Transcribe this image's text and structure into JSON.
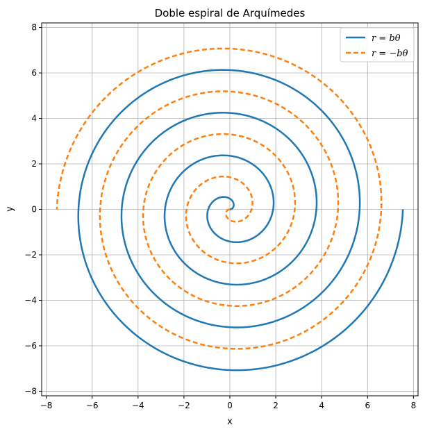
{
  "chart_data": {
    "type": "line",
    "title": "Doble espiral de Arquímedes",
    "xlabel": "x",
    "ylabel": "y",
    "xlim": [
      -8.2,
      8.2
    ],
    "ylim": [
      -8.2,
      8.2
    ],
    "xticks": [
      -8,
      -6,
      -4,
      -2,
      0,
      2,
      4,
      6,
      8
    ],
    "yticks": [
      -8,
      -6,
      -4,
      -2,
      0,
      2,
      4,
      6,
      8
    ],
    "xtick_labels": [
      "−8",
      "−6",
      "−4",
      "−2",
      "0",
      "2",
      "4",
      "6",
      "8"
    ],
    "ytick_labels": [
      "−8",
      "−6",
      "−4",
      "−2",
      "0",
      "2",
      "4",
      "6",
      "8"
    ],
    "grid": true,
    "legend_position": "top-right",
    "equation": {
      "parameter": "theta",
      "theta_range": [
        0,
        25.1327
      ],
      "b": 0.3
    },
    "series": [
      {
        "name": "r = bθ",
        "formula": "r = b*theta",
        "color": "#1f77b4",
        "line_style": "solid"
      },
      {
        "name": "r = −bθ",
        "formula": "r = -b*theta",
        "color": "#ff7f0e",
        "line_style": "dashed"
      }
    ]
  }
}
